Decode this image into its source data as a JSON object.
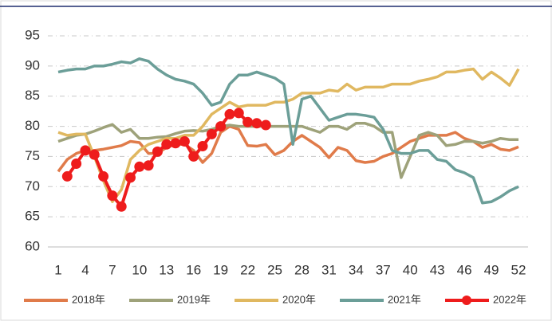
{
  "chart_data": {
    "type": "line",
    "categories": [
      1,
      null,
      null,
      4,
      null,
      null,
      7,
      null,
      null,
      10,
      null,
      null,
      13,
      null,
      null,
      16,
      null,
      null,
      19,
      null,
      null,
      22,
      null,
      null,
      25,
      null,
      null,
      28,
      null,
      null,
      31,
      null,
      null,
      34,
      null,
      null,
      37,
      null,
      null,
      40,
      null,
      null,
      43,
      null,
      null,
      46,
      null,
      null,
      49,
      null,
      null,
      52
    ],
    "ylim": [
      60,
      95
    ],
    "yticks": [
      60,
      65,
      70,
      75,
      80,
      85,
      90,
      95
    ],
    "grid": true,
    "legend": "bottom",
    "series": [
      {
        "name": "2018年",
        "color": "#e07b4a",
        "values": [
          72.5,
          74.5,
          75.5,
          76,
          76,
          76.2,
          76.5,
          76.8,
          77.5,
          77.3,
          75.5,
          75.5,
          76.5,
          77,
          77,
          76,
          74,
          75.5,
          79,
          80,
          79.5,
          76.8,
          76.7,
          77,
          75.3,
          76,
          77.5,
          78.5,
          77.5,
          76.5,
          74.8,
          76.5,
          76,
          74.3,
          74,
          74.2,
          75,
          75.5,
          76.5,
          77.5,
          78,
          78.5,
          78.5,
          78.5,
          79,
          78,
          77.5,
          76.5,
          77,
          76.2,
          76,
          76.6
        ]
      },
      {
        "name": "2019年",
        "color": "#9ea27a",
        "values": [
          77.5,
          78,
          78.5,
          78.7,
          79.2,
          79.8,
          80.3,
          79,
          79.5,
          78,
          78,
          78.2,
          78.3,
          78.8,
          79.2,
          79.3,
          79.2,
          79.5,
          80,
          80.2,
          80,
          80,
          80,
          80,
          80,
          80,
          80,
          80,
          79.5,
          79,
          80,
          80,
          79.5,
          80.5,
          80.5,
          80,
          79,
          79,
          71.5,
          75,
          78.5,
          79,
          78.5,
          76.8,
          77,
          77.5,
          77.5,
          77.2,
          77.5,
          78,
          77.8,
          77.8
        ]
      },
      {
        "name": "2020年",
        "color": "#e0b860",
        "values": [
          79,
          78.5,
          78.7,
          78.7,
          75,
          71,
          67.5,
          69.5,
          74.5,
          76,
          77,
          77.5,
          78,
          78,
          78.5,
          78.5,
          80,
          82,
          83,
          84,
          83.2,
          83.5,
          83.5,
          83.5,
          84,
          84,
          84.5,
          85.5,
          85.5,
          85.5,
          86,
          85.8,
          87,
          86,
          86.5,
          86.5,
          86.5,
          87,
          87,
          87,
          87.5,
          87.8,
          88.2,
          89,
          89,
          89.3,
          89.5,
          87.8,
          89,
          88,
          86.8,
          89.5
        ]
      },
      {
        "name": "2021年",
        "color": "#6b9e98",
        "values": [
          89,
          89.3,
          89.5,
          89.5,
          90,
          90,
          90.3,
          90.7,
          90.5,
          91.2,
          90.8,
          89.5,
          88.5,
          87.8,
          87.5,
          87,
          85.5,
          83.5,
          84,
          87,
          88.5,
          88.5,
          89,
          88.5,
          88,
          87,
          77,
          84.5,
          85,
          83,
          81,
          81.5,
          82,
          82,
          81.8,
          81.5,
          79.5,
          76,
          75.5,
          75.5,
          76,
          76,
          74.5,
          74.2,
          72.8,
          72.3,
          71.5,
          67.3,
          67.5,
          68.3,
          69.3,
          70
        ]
      },
      {
        "name": "2022年",
        "color": "#ee1c1c",
        "marker": "circle",
        "values": [
          null,
          71.7,
          73.8,
          76,
          75.3,
          71.7,
          68.5,
          66.7,
          71.5,
          73.3,
          73.5,
          75.8,
          77,
          77.2,
          77.5,
          75,
          76.7,
          78.7,
          80,
          82,
          82.2,
          80.7,
          80.5,
          80.2,
          null,
          null,
          null,
          null,
          null,
          null,
          null,
          null,
          null,
          null,
          null,
          null,
          null,
          null,
          null,
          null,
          null,
          null,
          null,
          null,
          null,
          null,
          null,
          null,
          null,
          null,
          null,
          null
        ]
      }
    ]
  }
}
